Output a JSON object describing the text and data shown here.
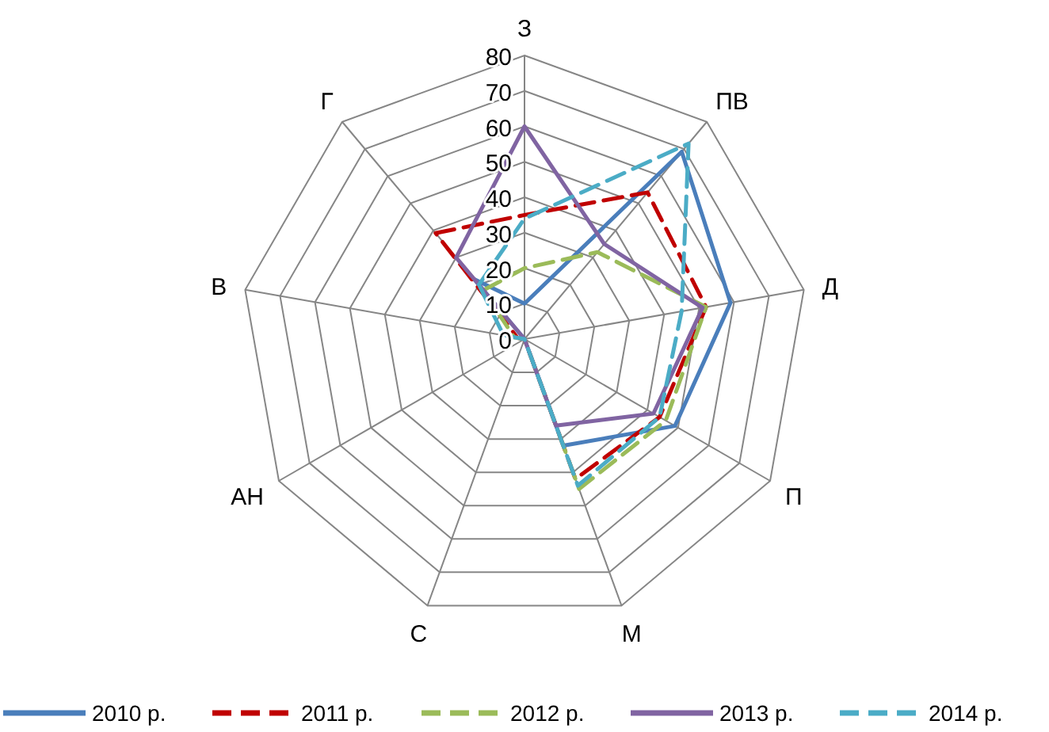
{
  "chart_data": {
    "type": "radar",
    "categories": [
      "З",
      "ПВ",
      "Д",
      "П",
      "М",
      "С",
      "АН",
      "В",
      "Г"
    ],
    "ylim": [
      0,
      80
    ],
    "yticks": [
      0,
      10,
      20,
      30,
      40,
      50,
      60,
      70,
      80
    ],
    "grid": true,
    "legend": "bottom",
    "marker": "none",
    "series": [
      {
        "name": "2010 р.",
        "color": "#4a7ebb",
        "line_style": "solid",
        "values": [
          10,
          69,
          59,
          49,
          32,
          0,
          0,
          0,
          22
        ]
      },
      {
        "name": "2011 р.",
        "color": "#c00000",
        "line_style": "dashed",
        "values": [
          35,
          54,
          52,
          44,
          42,
          0,
          0,
          2,
          39
        ]
      },
      {
        "name": "2012 р.",
        "color": "#9bbb59",
        "line_style": "dashed",
        "values": [
          20,
          32,
          52,
          46,
          45,
          0,
          0,
          3,
          18
        ]
      },
      {
        "name": "2013 р.",
        "color": "#8064a2",
        "line_style": "solid",
        "values": [
          60,
          35,
          51,
          42,
          26,
          0,
          0,
          0,
          30
        ]
      },
      {
        "name": "2014 р.",
        "color": "#4bacc6",
        "line_style": "dashed",
        "values": [
          34,
          72,
          45,
          44,
          44,
          0,
          0,
          6,
          20
        ]
      }
    ]
  }
}
